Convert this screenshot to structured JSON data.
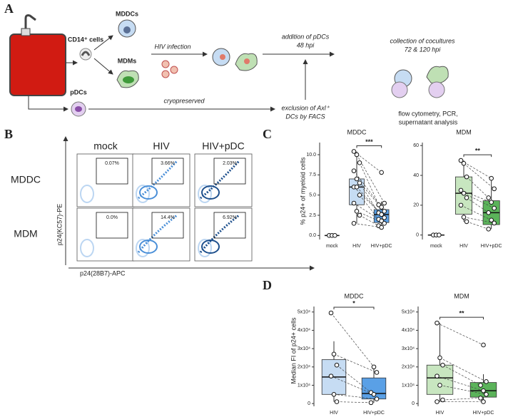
{
  "panel_a": {
    "label": "A",
    "cd14_cells": "CD14⁺ cells",
    "mddcs": "MDDCs",
    "mdms": "MDMs",
    "pdcs": "pDCs",
    "hiv_infection": "HIV infection",
    "cryopreserved": "cryopreserved",
    "addition_1": "addition of pDCs",
    "addition_2": "48 hpi",
    "exclusion_1": "exclusion of Axl⁺",
    "exclusion_2": "DCs by FACS",
    "collection_1": "collection of cocultures",
    "collection_2": "72 & 120 hpi",
    "analysis_1": "flow cytometry, PCR,",
    "analysis_2": "supernatant analysis"
  },
  "panel_b": {
    "label": "B",
    "columns": [
      "mock",
      "HIV",
      "HIV+pDC"
    ],
    "rows": [
      "MDDC",
      "MDM"
    ],
    "gates": [
      [
        "0.07%",
        "3.66%",
        "2.03%"
      ],
      [
        "0.0%",
        "14.4%",
        "6.92%"
      ]
    ],
    "y_axis": "p24(KC57)-PE",
    "x_axis": "p24(28B7)-APC"
  },
  "panel_c": {
    "label": "C",
    "y_axis": "% p24+ of myeloid cells",
    "charts": [
      {
        "type": "box",
        "title": "MDDC",
        "categories": [
          "mock",
          "HIV",
          "HIV+pDC"
        ],
        "colors": [
          "#c6dcf3",
          "#c6dcf3",
          "#5aa0e6"
        ],
        "ylim": [
          -0.5,
          11.5
        ],
        "yticks": [
          {
            "value": 0,
            "label": "0.0"
          },
          2.5,
          {
            "value": 5,
            "label": "5.0"
          },
          7.5,
          {
            "value": 10,
            "label": "10.0"
          }
        ],
        "boxes": [
          {
            "min": 0,
            "q1": 0,
            "median": 0,
            "q3": 0,
            "max": 0
          },
          {
            "min": 1.5,
            "q1": 3.8,
            "median": 6,
            "q3": 7,
            "max": 10.4
          },
          {
            "min": 1,
            "q1": 1.6,
            "median": 2.6,
            "q3": 3.2,
            "max": 4.2
          }
        ],
        "points": [
          [
            0,
            0,
            0
          ],
          [
            10.4,
            10,
            9,
            8,
            7,
            6.5,
            6,
            6,
            5,
            4,
            3,
            2.5,
            1.5
          ],
          [
            7.8,
            4,
            3.8,
            3.5,
            3,
            2.8,
            2.6,
            2.2,
            2,
            1.8,
            1.5,
            1.2,
            1
          ]
        ],
        "significance": "***"
      },
      {
        "type": "box",
        "title": "MDM",
        "categories": [
          "mock",
          "HIV",
          "HIV+pDC"
        ],
        "colors": [
          "#c8e6c0",
          "#c8e6c0",
          "#5bb35a"
        ],
        "ylim": [
          -3,
          62
        ],
        "yticks": [
          0,
          20,
          40,
          60
        ],
        "boxes": [
          {
            "min": 0,
            "q1": 0,
            "median": 0,
            "q3": 0,
            "max": 0
          },
          {
            "min": 9,
            "q1": 14,
            "median": 28,
            "q3": 39,
            "max": 50
          },
          {
            "min": 4,
            "q1": 7,
            "median": 15,
            "q3": 23,
            "max": 38
          }
        ],
        "points": [
          [
            0,
            0,
            0
          ],
          [
            50,
            48,
            39,
            30,
            28,
            25,
            20,
            12,
            9
          ],
          [
            38,
            31,
            25,
            22,
            18,
            15,
            10,
            8,
            4
          ]
        ],
        "significance": "**"
      }
    ]
  },
  "panel_d": {
    "label": "D",
    "y_axis": "Median FI of p24+ cells",
    "charts": [
      {
        "type": "box",
        "title": "MDDC",
        "categories": [
          "HIV",
          "HIV+pDC"
        ],
        "colors": [
          "#c6dcf3",
          "#5aa0e6"
        ],
        "ylim": [
          -1500,
          53000
        ],
        "yticks": [
          0,
          {
            "value": 10000,
            "label": "1x10⁴"
          },
          {
            "value": 20000,
            "label": "2x10⁴"
          },
          {
            "value": 30000,
            "label": "3x10⁴"
          },
          {
            "value": 40000,
            "label": "4x10⁴"
          },
          {
            "value": 50000,
            "label": "5x10⁴"
          }
        ],
        "boxes": [
          {
            "min": 1000,
            "q1": 5000,
            "median": 14500,
            "q3": 24000,
            "max": 34000
          },
          {
            "min": 500,
            "q1": 2500,
            "median": 5500,
            "q3": 14000,
            "max": 20000
          }
        ],
        "points": [
          [
            49500,
            27000,
            21000,
            15000,
            5000,
            1000
          ],
          [
            20000,
            17000,
            6000,
            5000,
            2500,
            500
          ]
        ],
        "significance": "*"
      },
      {
        "type": "box",
        "title": "MDM",
        "categories": [
          "HIV",
          "HIV+pDC"
        ],
        "colors": [
          "#c8e6c0",
          "#5bb35a"
        ],
        "ylim": [
          -1500,
          53000
        ],
        "yticks": [
          0,
          {
            "value": 10000,
            "label": "1x10⁴"
          },
          {
            "value": 20000,
            "label": "2x10⁴"
          },
          {
            "value": 30000,
            "label": "3x10⁴"
          },
          {
            "value": 40000,
            "label": "4x10⁴"
          },
          {
            "value": 50000,
            "label": "5x10⁴"
          }
        ],
        "boxes": [
          {
            "min": 1000,
            "q1": 5000,
            "median": 14000,
            "q3": 21000,
            "max": 44000
          },
          {
            "min": 1000,
            "q1": 3500,
            "median": 7000,
            "q3": 11500,
            "max": 16000
          }
        ],
        "points": [
          [
            44000,
            25000,
            21000,
            15000,
            10000,
            2000,
            1000
          ],
          [
            32000,
            12000,
            10000,
            7000,
            5000,
            3000,
            1000
          ]
        ],
        "significance": "**"
      }
    ]
  }
}
